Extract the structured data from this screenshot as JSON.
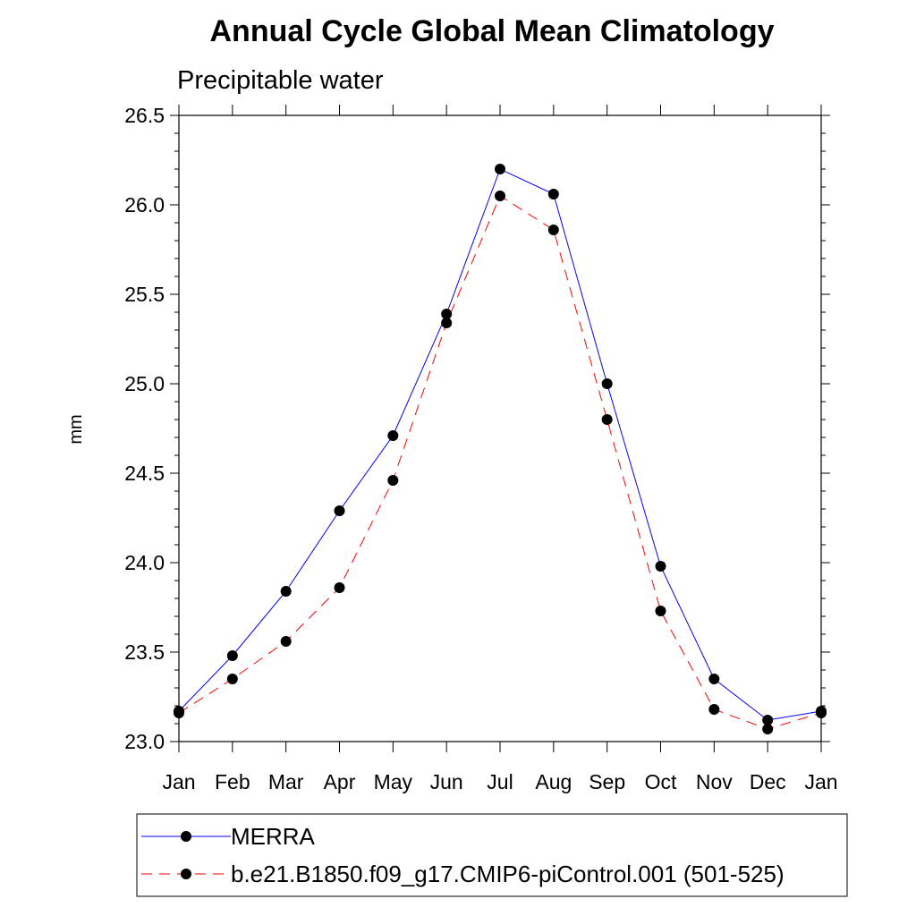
{
  "chart_data": {
    "type": "line",
    "title": "Annual Cycle Global Mean Climatology",
    "subtitle": "Precipitable water",
    "ylabel": "mm",
    "xlabel": "",
    "categories": [
      "Jan",
      "Feb",
      "Mar",
      "Apr",
      "May",
      "Jun",
      "Jul",
      "Aug",
      "Sep",
      "Oct",
      "Nov",
      "Dec",
      "Jan"
    ],
    "ylim": [
      23.0,
      26.5
    ],
    "y_ticks": [
      "23.0",
      "23.5",
      "24.0",
      "24.5",
      "25.0",
      "25.5",
      "26.0",
      "26.5"
    ],
    "grid": false,
    "legend_position": "bottom",
    "series": [
      {
        "name": "MERRA",
        "color": "#0000ff",
        "dash": "solid",
        "marker": "circle",
        "values": [
          23.17,
          23.48,
          23.84,
          24.29,
          24.71,
          25.39,
          26.2,
          26.06,
          25.0,
          23.98,
          23.35,
          23.12,
          23.17
        ]
      },
      {
        "name": "b.e21.B1850.f09_g17.CMIP6-piControl.001 (501-525)",
        "color": "#ff0000",
        "dash": "dashed",
        "marker": "circle",
        "values": [
          23.16,
          23.35,
          23.56,
          23.86,
          24.46,
          25.34,
          26.05,
          25.86,
          24.8,
          23.73,
          23.18,
          23.07,
          23.16
        ]
      }
    ]
  }
}
